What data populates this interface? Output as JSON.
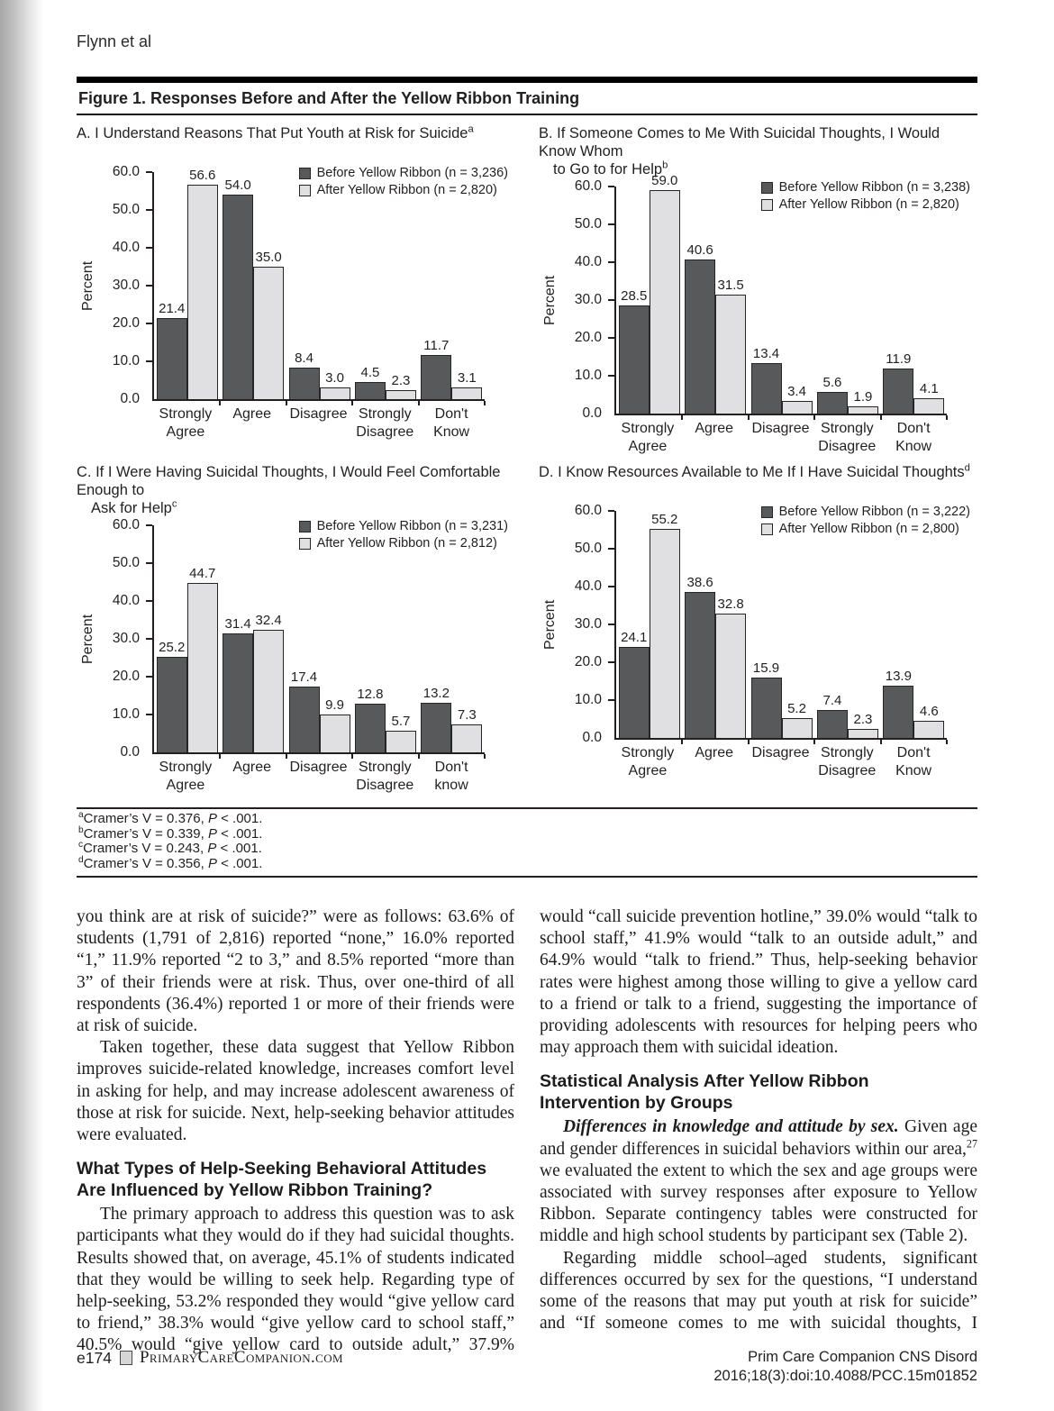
{
  "page": {
    "running_head": "Flynn et al",
    "footer": {
      "page_number": "e174",
      "site": "PrimaryCareCompanion.com",
      "journal_line1": "Prim Care Companion CNS Disord",
      "journal_line2": "2016;18(3):doi:10.4088/PCC.15m01852"
    }
  },
  "colors": {
    "bar_before": "#58595b",
    "bar_after": "#e0e0e2",
    "bar_border": "#262626",
    "text": "#231f20"
  },
  "figure": {
    "title": "Figure 1. Responses Before and After the Yellow Ribbon Training",
    "footnotes": [
      {
        "sup": "a",
        "pre": "Cramer’s V = 0.376, ",
        "p": "P",
        "post": " < .001."
      },
      {
        "sup": "b",
        "pre": "Cramer’s V = 0.339, ",
        "p": "P",
        "post": " < .001."
      },
      {
        "sup": "c",
        "pre": "Cramer’s V = 0.243, ",
        "p": "P",
        "post": " < .001."
      },
      {
        "sup": "d",
        "pre": "Cramer’s V = 0.356, ",
        "p": "P",
        "post": " < .001."
      }
    ]
  },
  "chart_data": [
    {
      "id": "A",
      "type": "bar",
      "title": "A. I Understand Reasons That Put Youth at Risk for Suicide",
      "title_lines": [
        {
          "text": "A. I Understand Reasons That Put Youth at Risk for Suicide",
          "sup": "a"
        }
      ],
      "categories": [
        "Strongly Agree",
        "Agree",
        "Disagree",
        "Strongly Disagree",
        "Don't Know"
      ],
      "categories_lines": [
        [
          "Strongly",
          "Agree"
        ],
        [
          "Agree"
        ],
        [
          "Disagree"
        ],
        [
          "Strongly",
          "Disagree"
        ],
        [
          "Don't Know"
        ]
      ],
      "series": [
        {
          "name": "Before Yellow Ribbon (n = 3,236)",
          "values": [
            21.4,
            54.0,
            8.4,
            4.5,
            11.7
          ]
        },
        {
          "name": "After Yellow Ribbon (n = 2,820)",
          "values": [
            56.6,
            35.0,
            3.0,
            2.3,
            3.1
          ]
        }
      ],
      "ylabel": "Percent",
      "ylim": [
        0,
        60
      ],
      "ystep": 10,
      "legend_position": "top-right",
      "grid": false
    },
    {
      "id": "B",
      "type": "bar",
      "title": "B. If Someone Comes to Me With Suicidal Thoughts, I Would Know Whom to Go to for Help",
      "title_lines": [
        {
          "text": "B. If Someone Comes to Me With Suicidal Thoughts, I Would Know Whom",
          "sup": ""
        },
        {
          "text": "to Go to for Help",
          "sup": "b"
        }
      ],
      "categories": [
        "Strongly Agree",
        "Agree",
        "Disagree",
        "Strongly Disagree",
        "Don't Know"
      ],
      "categories_lines": [
        [
          "Strongly",
          "Agree"
        ],
        [
          "Agree"
        ],
        [
          "Disagree"
        ],
        [
          "Strongly",
          "Disagree"
        ],
        [
          "Don't Know"
        ]
      ],
      "series": [
        {
          "name": "Before Yellow Ribbon (n = 3,238)",
          "values": [
            28.5,
            40.6,
            13.4,
            5.6,
            11.9
          ]
        },
        {
          "name": "After Yellow Ribbon (n = 2,820)",
          "values": [
            59.0,
            31.5,
            3.4,
            1.9,
            4.1
          ]
        }
      ],
      "ylabel": "Percent",
      "ylim": [
        0,
        60
      ],
      "ystep": 10,
      "legend_position": "top-right",
      "grid": false
    },
    {
      "id": "C",
      "type": "bar",
      "title": "C. If I Were Having Suicidal Thoughts, I Would Feel Comfortable Enough to Ask for Help",
      "title_lines": [
        {
          "text": "C. If I Were Having Suicidal Thoughts, I Would Feel Comfortable Enough to",
          "sup": ""
        },
        {
          "text": "Ask for Help",
          "sup": "c"
        }
      ],
      "categories": [
        "Strongly Agree",
        "Agree",
        "Disagree",
        "Strongly Disagree",
        "Don't know"
      ],
      "categories_lines": [
        [
          "Strongly",
          "Agree"
        ],
        [
          "Agree"
        ],
        [
          "Disagree"
        ],
        [
          "Strongly",
          "Disagree"
        ],
        [
          "Don't know"
        ]
      ],
      "series": [
        {
          "name": "Before Yellow Ribbon (n = 3,231)",
          "values": [
            25.2,
            31.4,
            17.4,
            12.8,
            13.2
          ]
        },
        {
          "name": "After Yellow Ribbon (n = 2,812)",
          "values": [
            44.7,
            32.4,
            9.9,
            5.7,
            7.3
          ]
        }
      ],
      "ylabel": "Percent",
      "ylim": [
        0,
        60
      ],
      "ystep": 10,
      "legend_position": "top-right",
      "grid": false
    },
    {
      "id": "D",
      "type": "bar",
      "title": "D. I Know Resources Available to Me If I Have Suicidal Thoughts",
      "title_lines": [
        {
          "text": "D. I Know Resources Available to Me If I Have Suicidal Thoughts",
          "sup": "d"
        }
      ],
      "categories": [
        "Strongly Agree",
        "Agree",
        "Disagree",
        "Strongly Disagree",
        "Don't Know"
      ],
      "categories_lines": [
        [
          "Strongly",
          "Agree"
        ],
        [
          "Agree"
        ],
        [
          "Disagree"
        ],
        [
          "Strongly",
          "Disagree"
        ],
        [
          "Don't Know"
        ]
      ],
      "series": [
        {
          "name": "Before Yellow Ribbon (n = 3,222)",
          "values": [
            24.1,
            38.6,
            15.9,
            7.4,
            13.9
          ]
        },
        {
          "name": "After Yellow Ribbon (n = 2,800)",
          "values": [
            55.2,
            32.8,
            5.2,
            2.3,
            4.6
          ]
        }
      ],
      "ylabel": "Percent",
      "ylim": [
        0,
        60
      ],
      "ystep": 10,
      "legend_position": "top-right",
      "grid": false
    }
  ],
  "article": {
    "columns": [
      {
        "blocks": [
          {
            "type": "p",
            "indent": false,
            "cut": false,
            "segments": [
              {
                "t": "you think are at risk of suicide?” were as follows: 63.6% of students (1,791 of 2,816) reported “none,” 16.0% reported “1,” 11.9% reported “2 to 3,” and 8.5% reported “more than 3” of their friends were at risk. Thus, over one-third of all respondents (36.4%) reported 1 or more of their friends were at risk of suicide."
              }
            ]
          },
          {
            "type": "p",
            "indent": true,
            "cut": false,
            "segments": [
              {
                "t": "Taken together, these data suggest that Yellow Ribbon improves suicide-related knowledge, increases comfort level in asking for help, and may increase adolescent awareness of those at risk for suicide. Next, help-seeking behavior attitudes were evaluated."
              }
            ]
          },
          {
            "type": "h2",
            "segments": [
              {
                "t": "What Types of Help-Seeking Behavioral Attitudes"
              },
              {
                "t": "",
                "s": "br"
              },
              {
                "t": "Are Influenced by Yellow Ribbon Training?"
              }
            ]
          },
          {
            "type": "p",
            "indent": true,
            "cut": true,
            "segments": [
              {
                "t": "The primary approach to address this question was to ask participants what they would do if they had suicidal thoughts. Results showed that, on average, 45.1% of students indicated that they would be willing to seek help. Regarding type of help-seeking, 53.2% responded they would “give yellow card to friend,” 38.3% would “give yellow card to school staff,” 40.5% would “give yellow card to outside adult,” 37.9%"
              }
            ]
          }
        ]
      },
      {
        "blocks": [
          {
            "type": "p",
            "indent": false,
            "cut": false,
            "segments": [
              {
                "t": "would “call suicide prevention hotline,” 39.0% would “talk to school staff,” 41.9% would “talk to an outside adult,” and 64.9% would “talk to friend.” Thus, help-seeking behavior rates were highest among those willing to give a yellow card to a friend or talk to a friend, suggesting the importance of providing adolescents with resources for helping peers who may approach them with suicidal ideation."
              }
            ]
          },
          {
            "type": "h2",
            "segments": [
              {
                "t": "Statistical Analysis After Yellow Ribbon"
              },
              {
                "t": "",
                "s": "br"
              },
              {
                "t": "Intervention by Groups"
              }
            ]
          },
          {
            "type": "p",
            "indent": true,
            "cut": false,
            "segments": [
              {
                "t": "Differences in knowledge and attitude by sex.",
                "s": "bi"
              },
              {
                "t": " Given age and gender differences in suicidal behaviors within our area,"
              },
              {
                "t": "27",
                "s": "sup"
              },
              {
                "t": " we evaluated the extent to which the sex and age groups were associated with survey responses after exposure to Yellow Ribbon. Separate contingency tables were constructed for middle and high school students by participant sex (Table 2)."
              }
            ]
          },
          {
            "type": "p",
            "indent": true,
            "cut": true,
            "segments": [
              {
                "t": "Regarding middle school–aged students, significant differences occurred by sex for the questions, “I understand some of the reasons that may put youth at risk for suicide” and “If someone comes to me with suicidal thoughts, I"
              }
            ]
          }
        ]
      }
    ]
  }
}
